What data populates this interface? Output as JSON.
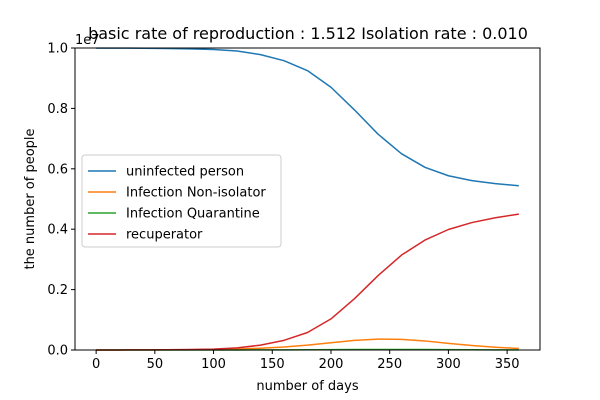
{
  "chart_data": {
    "type": "line",
    "title": "basic rate of reproduction : 1.512  Isolation rate : 0.010",
    "xlabel": "number of days",
    "ylabel": "the number of people",
    "y_scale_label": "1e7",
    "xlim": [
      -18,
      378
    ],
    "ylim": [
      0,
      1.0
    ],
    "x_ticks": [
      0,
      50,
      100,
      150,
      200,
      250,
      300,
      350
    ],
    "y_ticks": [
      0.0,
      0.2,
      0.4,
      0.6,
      0.8,
      1.0
    ],
    "x_tick_labels": [
      "0",
      "50",
      "100",
      "150",
      "200",
      "250",
      "300",
      "350"
    ],
    "y_tick_labels": [
      "0.0",
      "0.2",
      "0.4",
      "0.6",
      "0.8",
      "1.0"
    ],
    "grid": false,
    "legend_position": "center-left",
    "x": [
      0,
      20,
      40,
      60,
      80,
      100,
      120,
      140,
      160,
      180,
      200,
      220,
      240,
      260,
      280,
      300,
      320,
      340,
      360
    ],
    "series": [
      {
        "name": "uninfected person",
        "color": "#1f77b4",
        "values": [
          0.9997,
          0.9995,
          0.9992,
          0.9985,
          0.9972,
          0.995,
          0.99,
          0.978,
          0.958,
          0.925,
          0.87,
          0.795,
          0.715,
          0.65,
          0.605,
          0.577,
          0.561,
          0.551,
          0.544
        ]
      },
      {
        "name": "Infection Non-isolator",
        "color": "#ff7f0e",
        "values": [
          0.0001,
          0.0002,
          0.0003,
          0.0006,
          0.001,
          0.0018,
          0.0032,
          0.0058,
          0.01,
          0.016,
          0.024,
          0.032,
          0.036,
          0.035,
          0.03,
          0.022,
          0.015,
          0.009,
          0.005
        ]
      },
      {
        "name": "Infection Quarantine",
        "color": "#2ca02c",
        "values": [
          0.0,
          0.0,
          0.0,
          0.0,
          0.0001,
          0.0001,
          0.0002,
          0.0003,
          0.0005,
          0.0008,
          0.0012,
          0.0016,
          0.0018,
          0.0018,
          0.0015,
          0.0011,
          0.0008,
          0.0005,
          0.0003
        ]
      },
      {
        "name": "recuperator",
        "color": "#d62728",
        "values": [
          0.0,
          0.0002,
          0.0004,
          0.0008,
          0.0016,
          0.003,
          0.007,
          0.016,
          0.032,
          0.058,
          0.103,
          0.17,
          0.246,
          0.314,
          0.364,
          0.399,
          0.422,
          0.438,
          0.45
        ]
      }
    ]
  }
}
